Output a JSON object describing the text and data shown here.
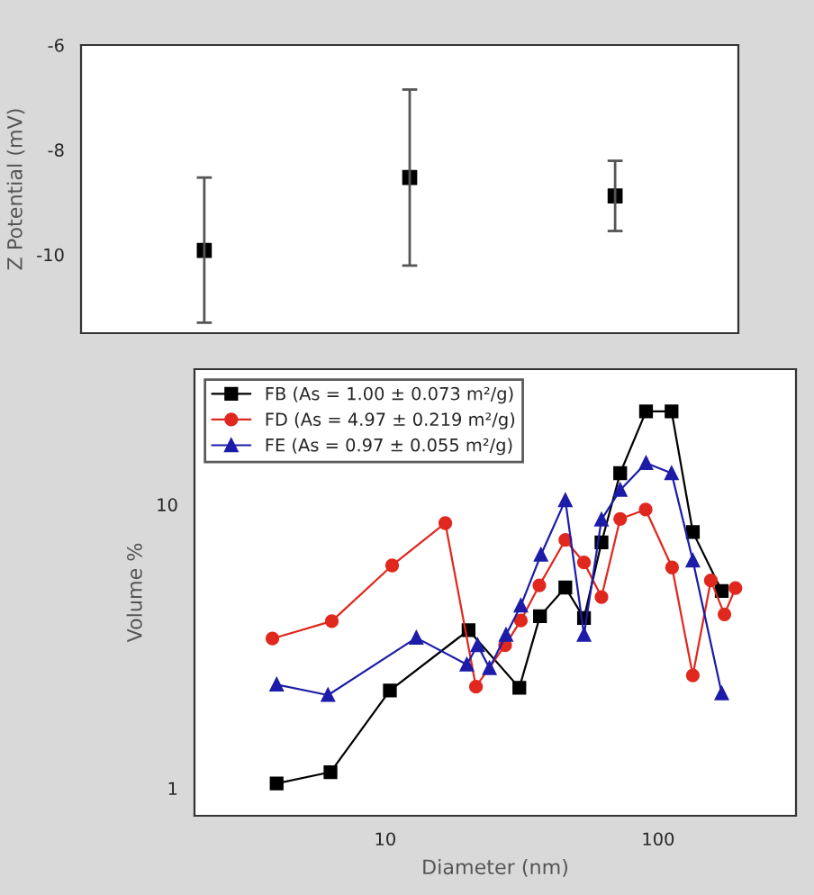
{
  "chart_data": [
    {
      "type": "scatter",
      "ylabel": "Z Potential (mV)",
      "categories": [
        null,
        null,
        null
      ],
      "values": [
        -9.92,
        -8.53,
        -8.88
      ],
      "errors": [
        [
          -11.3,
          -8.53
        ],
        [
          -10.21,
          -6.85
        ],
        [
          -9.55,
          -8.21
        ]
      ],
      "color": "#000000",
      "marker": "square",
      "ylim": [
        -11.5,
        -6
      ],
      "yticks": [
        {
          "value": -6,
          "label": "-6"
        },
        {
          "value": -8,
          "label": "-8"
        },
        {
          "value": -10,
          "label": "-10"
        }
      ],
      "tick_labels": "y",
      "grid": false
    },
    {
      "type": "line",
      "xlabel": "Diameter (nm)",
      "ylabel": "Volume %",
      "log": "xy",
      "xlim": [
        2,
        320
      ],
      "xticks": [
        10,
        100
      ],
      "ylim": [
        0.8,
        30
      ],
      "yticks": [
        1,
        10
      ],
      "legend": "top left",
      "grid": false,
      "line_style": "solid",
      "series": [
        {
          "name": "FB (As = 1.00 ± 0.073 m²/g)",
          "color": "#000000",
          "marker": "square",
          "x": [
            4.0,
            6.3,
            10.4,
            20.2,
            31,
            36.9,
            45.7,
            53.5,
            62,
            72.6,
            90.3,
            112,
            134,
            171
          ],
          "values": [
            1.04,
            1.14,
            2.21,
            3.61,
            2.26,
            4.04,
            5.1,
            3.98,
            7.35,
            12.9,
            21.3,
            21.3,
            8.0,
            4.96
          ]
        },
        {
          "name": "FD (As = 4.97 ± 0.219 m²/g)",
          "color": "#e0281e",
          "marker": "circle",
          "x": [
            3.86,
            6.37,
            10.6,
            16.6,
            21.5,
            27.5,
            31.4,
            36.7,
            45.7,
            53.5,
            62,
            72.6,
            90,
            112.5,
            134,
            156,
            175,
            192
          ],
          "values": [
            3.37,
            3.88,
            6.1,
            8.6,
            2.28,
            3.19,
            3.9,
            5.19,
            7.5,
            6.25,
            4.72,
            8.9,
            9.6,
            6.0,
            2.5,
            5.4,
            4.1,
            5.08
          ]
        },
        {
          "name": "FE (As = 0.97 ± 0.055 m²/g)",
          "color": "#1c1ca8",
          "marker": "triangle",
          "x": [
            4.0,
            6.17,
            13,
            19.9,
            21.8,
            24.1,
            27.7,
            31.4,
            37.2,
            45.7,
            53.5,
            62,
            72.6,
            90.3,
            112,
            134,
            171
          ],
          "values": [
            2.32,
            2.13,
            3.39,
            2.73,
            3.19,
            2.65,
            3.47,
            4.4,
            6.65,
            10.35,
            3.47,
            8.85,
            11.25,
            14.0,
            12.9,
            6.35,
            2.16
          ]
        }
      ]
    }
  ]
}
